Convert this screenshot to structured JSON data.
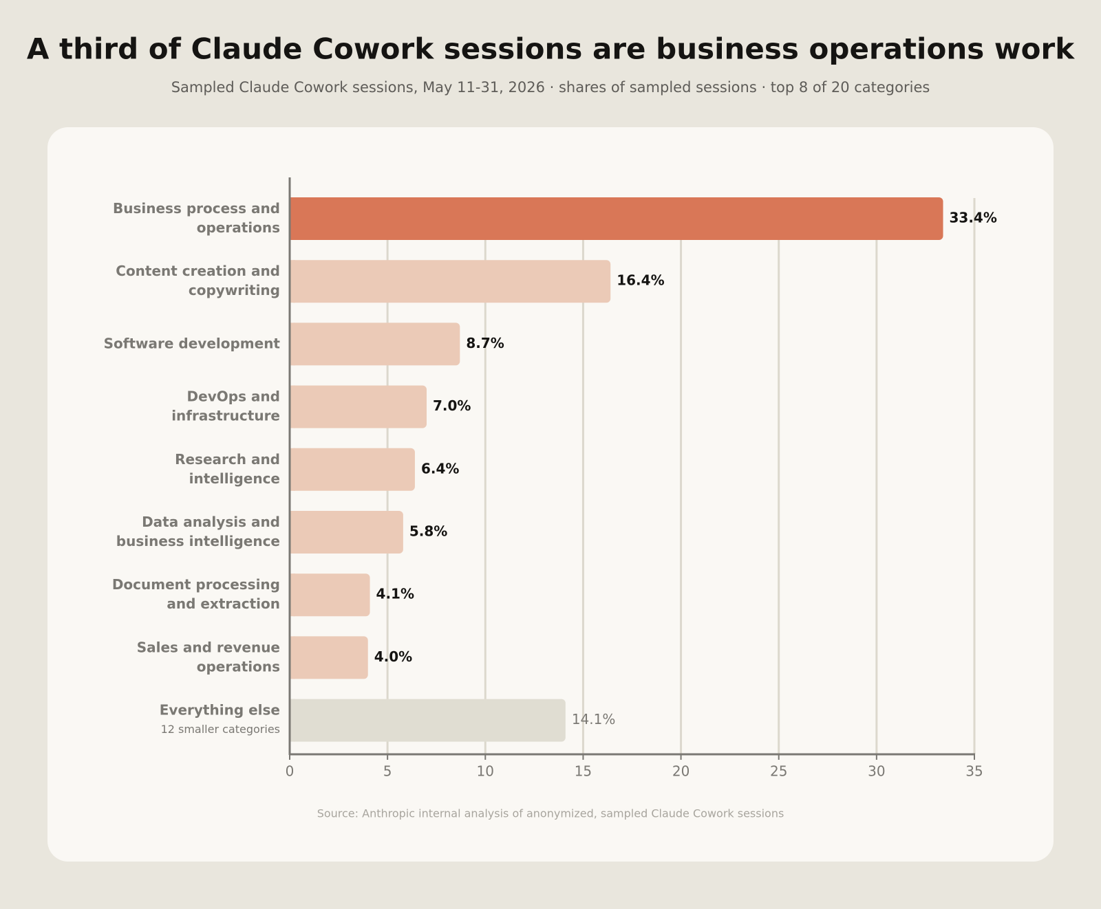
{
  "chart_data": {
    "type": "hbar",
    "title": "A third of Claude Cowork sessions are business operations work",
    "subtitle": "Sampled Claude Cowork sessions, May 11-31, 2026 · shares of sampled sessions · top 8 of 20 categories",
    "categories": [
      "Business process and operations",
      "Content creation and copywriting",
      "Software development",
      "DevOps and infrastructure",
      "Research and intelligence",
      "Data analysis and business intelligence",
      "Document processing and extraction",
      "Sales and revenue operations",
      "Everything else"
    ],
    "category_notes": [
      null,
      null,
      null,
      null,
      null,
      null,
      null,
      null,
      "12 smaller categories"
    ],
    "values": [
      33.4,
      16.4,
      8.7,
      7.0,
      6.4,
      5.8,
      4.1,
      4.0,
      14.1
    ],
    "value_labels": [
      "33.4%",
      "16.4%",
      "8.7%",
      "7.0%",
      "6.4%",
      "5.8%",
      "4.1%",
      "4.0%",
      "14.1%"
    ],
    "colors": [
      "#d97757",
      "#ebcab7",
      "#ebcab7",
      "#ebcab7",
      "#ebcab7",
      "#ebcab7",
      "#ebcab7",
      "#ebcab7",
      "#e0ddd2"
    ],
    "xlim": [
      0,
      35
    ],
    "xticks": [
      0,
      5,
      10,
      15,
      20,
      25,
      30,
      35
    ],
    "grid": true,
    "source": "Source: Anthropic internal analysis of anonymized, sampled Claude Cowork sessions"
  }
}
